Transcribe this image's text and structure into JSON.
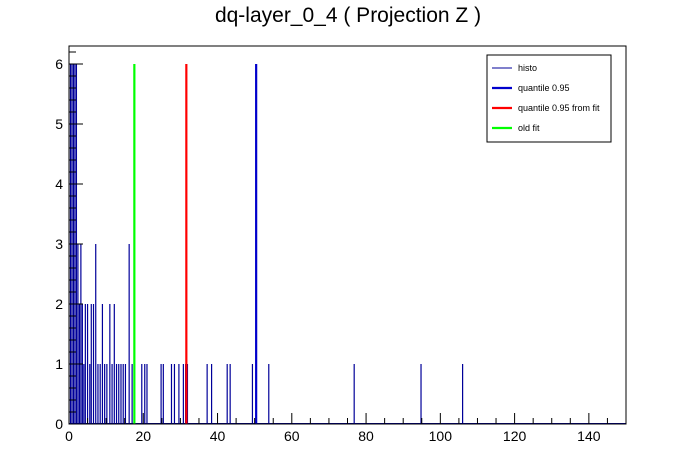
{
  "chart_data": {
    "type": "bar",
    "title": "dq-layer_0_4 ( Projection Z )",
    "xlabel": "",
    "ylabel": "",
    "xlim": [
      0,
      150
    ],
    "ylim": [
      0,
      6.3
    ],
    "x_ticks": [
      0,
      20,
      40,
      60,
      80,
      100,
      120,
      140
    ],
    "y_ticks": [
      0,
      1,
      2,
      3,
      4,
      5,
      6
    ],
    "grid": false,
    "legend_position": "top-right",
    "histogram": {
      "name": "histo",
      "color": "#000099",
      "bins": [
        {
          "x": 0.4,
          "y": 6
        },
        {
          "x": 0.8,
          "y": 6
        },
        {
          "x": 1.2,
          "y": 6
        },
        {
          "x": 1.6,
          "y": 6
        },
        {
          "x": 2.0,
          "y": 6
        },
        {
          "x": 2.4,
          "y": 3
        },
        {
          "x": 2.8,
          "y": 2
        },
        {
          "x": 3.2,
          "y": 3
        },
        {
          "x": 3.6,
          "y": 2
        },
        {
          "x": 4.0,
          "y": 1
        },
        {
          "x": 4.4,
          "y": 2
        },
        {
          "x": 5.0,
          "y": 2
        },
        {
          "x": 5.6,
          "y": 1
        },
        {
          "x": 6.0,
          "y": 2
        },
        {
          "x": 6.6,
          "y": 2
        },
        {
          "x": 7.2,
          "y": 3
        },
        {
          "x": 7.8,
          "y": 1
        },
        {
          "x": 8.4,
          "y": 1
        },
        {
          "x": 9.0,
          "y": 2
        },
        {
          "x": 9.6,
          "y": 1
        },
        {
          "x": 10.2,
          "y": 1
        },
        {
          "x": 11.0,
          "y": 2
        },
        {
          "x": 11.6,
          "y": 1
        },
        {
          "x": 12.2,
          "y": 2
        },
        {
          "x": 12.8,
          "y": 1
        },
        {
          "x": 13.4,
          "y": 1
        },
        {
          "x": 14.0,
          "y": 1
        },
        {
          "x": 14.6,
          "y": 1
        },
        {
          "x": 15.2,
          "y": 1
        },
        {
          "x": 16.2,
          "y": 3
        },
        {
          "x": 17.0,
          "y": 1
        },
        {
          "x": 19.6,
          "y": 1
        },
        {
          "x": 20.4,
          "y": 1
        },
        {
          "x": 21.0,
          "y": 1
        },
        {
          "x": 24.8,
          "y": 1
        },
        {
          "x": 25.4,
          "y": 1
        },
        {
          "x": 27.6,
          "y": 1
        },
        {
          "x": 28.4,
          "y": 1
        },
        {
          "x": 29.6,
          "y": 1
        },
        {
          "x": 30.8,
          "y": 1
        },
        {
          "x": 31.4,
          "y": 1
        },
        {
          "x": 31.9,
          "y": 1
        },
        {
          "x": 37.2,
          "y": 1
        },
        {
          "x": 38.4,
          "y": 1
        },
        {
          "x": 42.6,
          "y": 1
        },
        {
          "x": 43.4,
          "y": 1
        },
        {
          "x": 49.4,
          "y": 1
        },
        {
          "x": 53.8,
          "y": 1
        },
        {
          "x": 76.8,
          "y": 1
        },
        {
          "x": 94.8,
          "y": 1
        },
        {
          "x": 106.0,
          "y": 1
        }
      ]
    },
    "lines": [
      {
        "name": "quantile 0.95",
        "x": 50.4,
        "y": 6,
        "color": "#0000cc"
      },
      {
        "name": "quantile 0.95 from fit",
        "x": 31.6,
        "y": 6,
        "color": "#ff0000"
      },
      {
        "name": "old fit",
        "x": 17.6,
        "y": 6,
        "color": "#00ff00"
      }
    ]
  }
}
